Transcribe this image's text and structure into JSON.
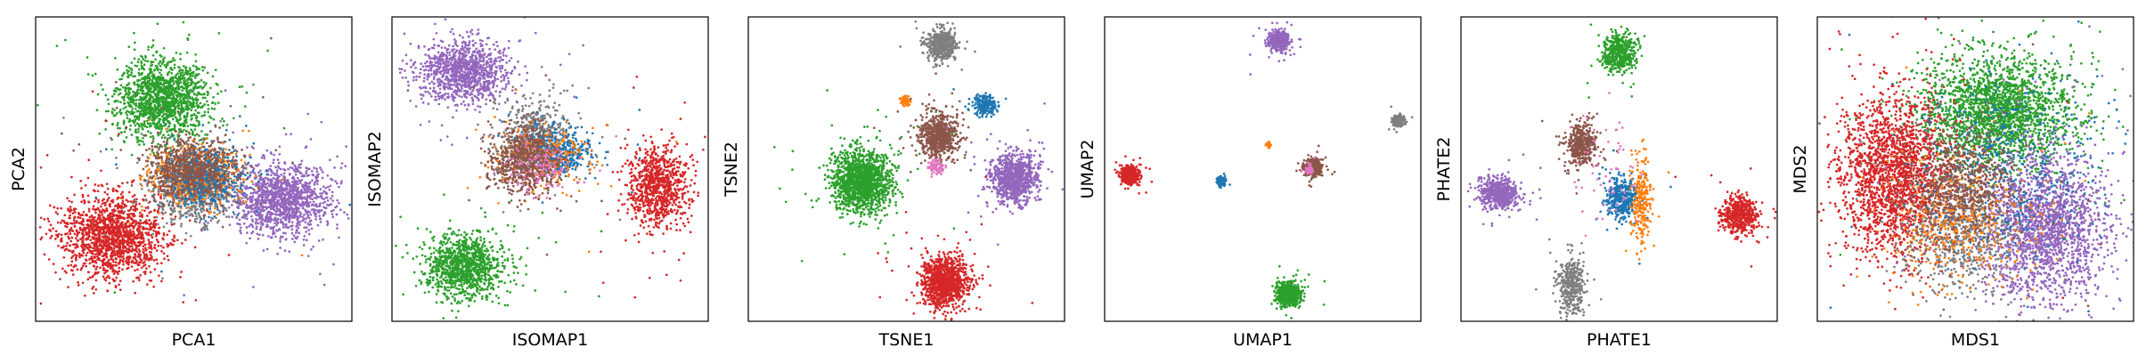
{
  "figure": {
    "palette": {
      "blue": "#1f77b4",
      "orange": "#ff7f0e",
      "green": "#2ca02c",
      "red": "#d62728",
      "purple": "#9467bd",
      "brown": "#8c564b",
      "pink": "#e377c2",
      "gray": "#7f7f7f"
    }
  },
  "chart_data": [
    {
      "type": "scatter",
      "xlabel": "PCA1",
      "ylabel": "PCA2",
      "xlim": [
        0,
        100
      ],
      "ylim": [
        0,
        100
      ],
      "ticks": "none",
      "grid": false,
      "clusters": [
        {
          "color": "green",
          "cx": 40,
          "cy": 73,
          "sx": 7,
          "sy": 6.5,
          "n": 1500
        },
        {
          "color": "red",
          "cx": 24,
          "cy": 28,
          "sx": 8,
          "sy": 6.5,
          "n": 1500
        },
        {
          "color": "purple",
          "cx": 78,
          "cy": 40,
          "sx": 7.5,
          "sy": 6,
          "n": 1300
        },
        {
          "color": "gray",
          "cx": 50,
          "cy": 44,
          "sx": 7,
          "sy": 5.5,
          "n": 700
        },
        {
          "color": "orange",
          "cx": 50,
          "cy": 48,
          "sx": 7,
          "sy": 5,
          "n": 500
        },
        {
          "color": "blue",
          "cx": 53,
          "cy": 47,
          "sx": 6,
          "sy": 5,
          "n": 500
        },
        {
          "color": "brown",
          "cx": 49,
          "cy": 50,
          "sx": 7,
          "sy": 5,
          "n": 700
        }
      ]
    },
    {
      "type": "scatter",
      "xlabel": "ISOMAP1",
      "ylabel": "ISOMAP2",
      "xlim": [
        0,
        100
      ],
      "ylim": [
        0,
        100
      ],
      "ticks": "none",
      "grid": false,
      "clusters": [
        {
          "color": "purple",
          "cx": 23,
          "cy": 82,
          "sx": 7,
          "sy": 5,
          "n": 1100
        },
        {
          "color": "green",
          "cx": 23,
          "cy": 18,
          "sx": 6,
          "sy": 5,
          "n": 1100
        },
        {
          "color": "red",
          "cx": 84,
          "cy": 44,
          "sx": 4.5,
          "sy": 6.5,
          "n": 900
        },
        {
          "color": "gray",
          "cx": 45,
          "cy": 60,
          "sx": 6,
          "sy": 6,
          "n": 500
        },
        {
          "color": "blue",
          "cx": 52,
          "cy": 56,
          "sx": 6,
          "sy": 4,
          "n": 450
        },
        {
          "color": "orange",
          "cx": 47,
          "cy": 53,
          "sx": 7,
          "sy": 5,
          "n": 300
        },
        {
          "color": "brown",
          "cx": 42,
          "cy": 53,
          "sx": 5.5,
          "sy": 5.5,
          "n": 700
        },
        {
          "color": "pink",
          "cx": 47,
          "cy": 51,
          "sx": 5,
          "sy": 4,
          "n": 120
        }
      ]
    },
    {
      "type": "scatter",
      "xlabel": "TSNE1",
      "ylabel": "TSNE2",
      "xlim": [
        0,
        100
      ],
      "ylim": [
        0,
        100
      ],
      "ticks": "none",
      "grid": false,
      "clusters": [
        {
          "color": "gray",
          "cx": 61,
          "cy": 91,
          "sx": 2.3,
          "sy": 2.5,
          "n": 500
        },
        {
          "color": "orange",
          "cx": 49.5,
          "cy": 72.5,
          "sx": 0.8,
          "sy": 0.9,
          "n": 50
        },
        {
          "color": "blue",
          "cx": 75,
          "cy": 71,
          "sx": 1.7,
          "sy": 1.7,
          "n": 200
        },
        {
          "color": "brown",
          "cx": 60,
          "cy": 61,
          "sx": 3.1,
          "sy": 3.5,
          "n": 700
        },
        {
          "color": "pink",
          "cx": 59.5,
          "cy": 50.5,
          "sx": 1.2,
          "sy": 1.2,
          "n": 80
        },
        {
          "color": "green",
          "cx": 36,
          "cy": 46,
          "sx": 4.6,
          "sy": 5,
          "n": 1500
        },
        {
          "color": "purple",
          "cx": 84,
          "cy": 47,
          "sx": 3.6,
          "sy": 4,
          "n": 900
        },
        {
          "color": "red",
          "cx": 62,
          "cy": 13,
          "sx": 3.6,
          "sy": 4,
          "n": 1100
        }
      ]
    },
    {
      "type": "scatter",
      "xlabel": "UMAP1",
      "ylabel": "UMAP2",
      "xlim": [
        0,
        100
      ],
      "ylim": [
        0,
        100
      ],
      "ticks": "none",
      "grid": false,
      "clusters": [
        {
          "color": "purple",
          "cx": 55,
          "cy": 92,
          "sx": 1.5,
          "sy": 1.5,
          "n": 500
        },
        {
          "color": "gray",
          "cx": 93,
          "cy": 66,
          "sx": 0.9,
          "sy": 0.9,
          "n": 200
        },
        {
          "color": "orange",
          "cx": 52,
          "cy": 58,
          "sx": 0.5,
          "sy": 0.5,
          "n": 20
        },
        {
          "color": "brown",
          "cx": 66,
          "cy": 50.5,
          "sx": 1.2,
          "sy": 1.3,
          "n": 500
        },
        {
          "color": "pink",
          "cx": 65,
          "cy": 50,
          "sx": 0.6,
          "sy": 0.6,
          "n": 60
        },
        {
          "color": "red",
          "cx": 8,
          "cy": 48,
          "sx": 1.3,
          "sy": 1.3,
          "n": 600
        },
        {
          "color": "blue",
          "cx": 37,
          "cy": 46,
          "sx": 0.7,
          "sy": 0.7,
          "n": 100
        },
        {
          "color": "green",
          "cx": 58,
          "cy": 9,
          "sx": 1.6,
          "sy": 1.8,
          "n": 700
        }
      ]
    },
    {
      "type": "scatter",
      "xlabel": "PHATE1",
      "ylabel": "PHATE2",
      "xlim": [
        0,
        100
      ],
      "ylim": [
        0,
        100
      ],
      "ticks": "none",
      "grid": false,
      "clusters": [
        {
          "color": "green",
          "cx": 50,
          "cy": 88,
          "sx": 2.5,
          "sy": 3,
          "n": 500
        },
        {
          "color": "brown",
          "cx": 38,
          "cy": 58,
          "sx": 2.5,
          "sy": 3.5,
          "n": 450
        },
        {
          "color": "purple",
          "cx": 12,
          "cy": 42,
          "sx": 3,
          "sy": 2.5,
          "n": 600
        },
        {
          "color": "blue",
          "cx": 51,
          "cy": 40,
          "sx": 2.5,
          "sy": 3.5,
          "n": 400
        },
        {
          "color": "orange",
          "cx": 57,
          "cy": 40,
          "sx": 1.5,
          "sy": 7,
          "n": 250
        },
        {
          "color": "red",
          "cx": 88,
          "cy": 35,
          "sx": 3,
          "sy": 3,
          "n": 500
        },
        {
          "color": "gray",
          "cx": 35,
          "cy": 12,
          "sx": 2,
          "sy": 5,
          "n": 400
        },
        {
          "color": "pink",
          "cx": 45,
          "cy": 50,
          "sx": 6,
          "sy": 10,
          "n": 60
        }
      ]
    },
    {
      "type": "scatter",
      "xlabel": "MDS1",
      "ylabel": "MDS2",
      "xlim": [
        0,
        100
      ],
      "ylim": [
        0,
        100
      ],
      "ticks": "none",
      "grid": false,
      "clusters": [
        {
          "color": "green",
          "cx": 57,
          "cy": 69,
          "sx": 12,
          "sy": 9,
          "n": 2200
        },
        {
          "color": "red",
          "cx": 24,
          "cy": 48,
          "sx": 8.5,
          "sy": 13,
          "n": 2000
        },
        {
          "color": "purple",
          "cx": 72,
          "cy": 31,
          "sx": 10,
          "sy": 12,
          "n": 2000
        },
        {
          "color": "gray",
          "cx": 45,
          "cy": 28,
          "sx": 9,
          "sy": 9,
          "n": 600
        },
        {
          "color": "orange",
          "cx": 45,
          "cy": 33,
          "sx": 10,
          "sy": 10,
          "n": 500
        },
        {
          "color": "blue",
          "cx": 60,
          "cy": 50,
          "sx": 14,
          "sy": 14,
          "n": 500
        },
        {
          "color": "brown",
          "cx": 45,
          "cy": 45,
          "sx": 9,
          "sy": 9,
          "n": 700
        }
      ]
    }
  ]
}
